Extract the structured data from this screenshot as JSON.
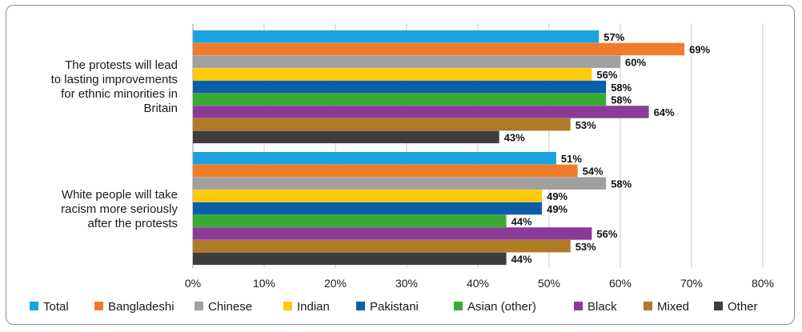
{
  "chart_data": {
    "type": "bar",
    "orientation": "horizontal",
    "categories": [
      "The protests will lead to lasting improvements for ethnic minorities in Britain",
      "White people will take racism more seriously after the protests"
    ],
    "category_lines": [
      [
        "The protests will lead",
        "to lasting improvements",
        "for ethnic minorities in",
        "Britain"
      ],
      [
        "White people will take",
        "racism more seriously",
        "after the protests"
      ]
    ],
    "series": [
      {
        "name": "Total",
        "color": "#1aa3e0",
        "values": [
          57,
          51
        ]
      },
      {
        "name": "Bangladeshi",
        "color": "#f07c2a",
        "values": [
          69,
          54
        ]
      },
      {
        "name": "Chinese",
        "color": "#a0a0a0",
        "values": [
          60,
          58
        ]
      },
      {
        "name": "Indian",
        "color": "#ffc90e",
        "values": [
          56,
          49
        ]
      },
      {
        "name": "Pakistani",
        "color": "#0b5fa8",
        "values": [
          58,
          49
        ]
      },
      {
        "name": "Asian (other)",
        "color": "#3aaa35",
        "values": [
          58,
          44
        ]
      },
      {
        "name": "Black",
        "color": "#8a3b97",
        "values": [
          64,
          56
        ]
      },
      {
        "name": "Mixed",
        "color": "#b07a26",
        "values": [
          53,
          53
        ]
      },
      {
        "name": "Other",
        "color": "#3d3d3d",
        "values": [
          43,
          44
        ]
      }
    ],
    "value_suffix": "%",
    "xlim": [
      0,
      80
    ],
    "xticks": [
      0,
      10,
      20,
      30,
      40,
      50,
      60,
      70,
      80
    ],
    "xtick_labels": [
      "0%",
      "10%",
      "20%",
      "30%",
      "40%",
      "50%",
      "60%",
      "70%",
      "80%"
    ],
    "grid": true,
    "legend_position": "bottom"
  }
}
